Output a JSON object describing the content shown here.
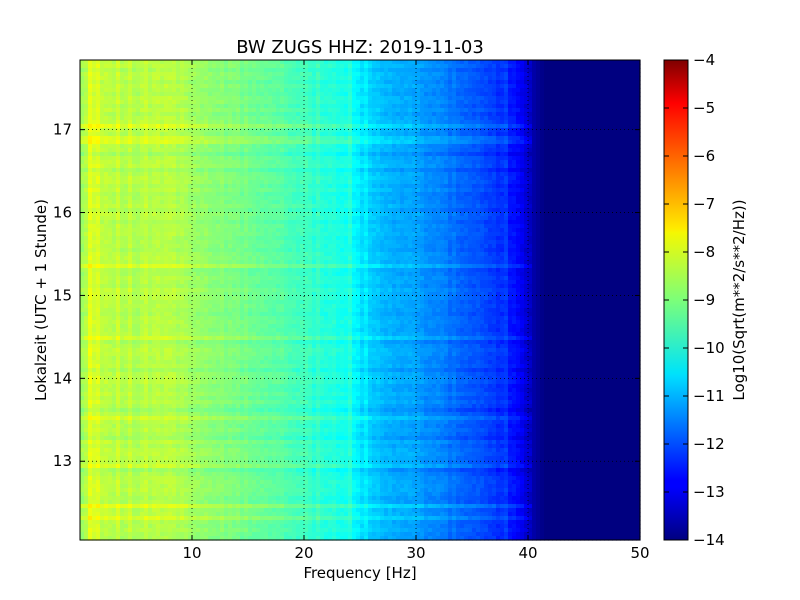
{
  "chart_data": {
    "type": "heatmap",
    "title": "BW ZUGS HHZ: 2019-11-03",
    "xlabel": "Frequency [Hz]",
    "ylabel": "Lokalzeit (UTC + 1 Stunde)",
    "colorbar_label": "Log10(Sqrt(m**2/s**2/Hz))",
    "xlim": [
      0,
      50
    ],
    "ylim": [
      17.84,
      12.05
    ],
    "x_ticks": [
      10,
      20,
      30,
      40,
      50
    ],
    "y_ticks": [
      13,
      14,
      15,
      16,
      17
    ],
    "colorbar_range": [
      -14,
      -4
    ],
    "colorbar_ticks": [
      -4,
      -5,
      -6,
      -7,
      -8,
      -9,
      -10,
      -11,
      -12,
      -13,
      -14
    ],
    "colormap": "jet",
    "grid": true,
    "frequency_profile": {
      "frequency_hz": [
        0,
        1,
        3,
        6,
        8,
        10,
        12,
        15,
        18,
        20,
        21,
        24,
        24.8,
        25,
        27,
        30,
        33,
        36,
        38,
        39.5,
        40.5,
        41.5,
        50
      ],
      "log10_amplitude": [
        -8.7,
        -8.2,
        -8.5,
        -8.5,
        -8.4,
        -8.7,
        -8.9,
        -9.1,
        -9.4,
        -9.6,
        -9.8,
        -10.0,
        -10.4,
        -10.6,
        -10.9,
        -11.2,
        -11.6,
        -12.0,
        -12.4,
        -12.9,
        -13.6,
        -14.0,
        -14.0
      ]
    }
  }
}
